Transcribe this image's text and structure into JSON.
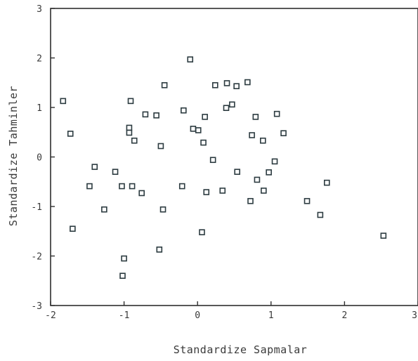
{
  "chart_data": {
    "type": "scatter",
    "title": "",
    "xlabel": "Standardize Sapmalar",
    "ylabel": "Standardize Tahminler",
    "xlim": [
      -2,
      3
    ],
    "ylim": [
      -3,
      3
    ],
    "xticks": [
      -2,
      -1,
      0,
      1,
      2,
      3
    ],
    "yticks": [
      -3,
      -2,
      -1,
      0,
      1,
      2,
      3
    ],
    "xtick_labels": [
      "-2",
      "-1",
      "0",
      "1",
      "2",
      "3"
    ],
    "ytick_labels": [
      "-3",
      "-2",
      "-1",
      "0",
      "1",
      "2",
      "3"
    ],
    "grid": false,
    "marker": "square",
    "marker_color": "#2c3b40",
    "points": [
      {
        "x": -1.83,
        "y": 1.13
      },
      {
        "x": -1.73,
        "y": 0.47
      },
      {
        "x": -1.7,
        "y": -1.45
      },
      {
        "x": -1.47,
        "y": -0.59
      },
      {
        "x": -1.4,
        "y": -0.2
      },
      {
        "x": -1.27,
        "y": -1.06
      },
      {
        "x": -1.12,
        "y": -0.3
      },
      {
        "x": -1.03,
        "y": -0.59
      },
      {
        "x": -1.0,
        "y": -2.05
      },
      {
        "x": -1.02,
        "y": -2.4
      },
      {
        "x": -0.93,
        "y": 0.59
      },
      {
        "x": -0.93,
        "y": 0.49
      },
      {
        "x": -0.91,
        "y": 1.13
      },
      {
        "x": -0.89,
        "y": -0.59
      },
      {
        "x": -0.86,
        "y": 0.33
      },
      {
        "x": -0.76,
        "y": -0.73
      },
      {
        "x": -0.71,
        "y": 0.86
      },
      {
        "x": -0.56,
        "y": 0.84
      },
      {
        "x": -0.52,
        "y": -1.87
      },
      {
        "x": -0.5,
        "y": 0.22
      },
      {
        "x": -0.47,
        "y": -1.06
      },
      {
        "x": -0.45,
        "y": 1.45
      },
      {
        "x": -0.21,
        "y": -0.59
      },
      {
        "x": -0.19,
        "y": 0.94
      },
      {
        "x": -0.1,
        "y": 1.97
      },
      {
        "x": -0.06,
        "y": 0.57
      },
      {
        "x": 0.01,
        "y": 0.54
      },
      {
        "x": 0.06,
        "y": -1.52
      },
      {
        "x": 0.08,
        "y": 0.29
      },
      {
        "x": 0.1,
        "y": 0.81
      },
      {
        "x": 0.12,
        "y": -0.71
      },
      {
        "x": 0.21,
        "y": -0.06
      },
      {
        "x": 0.24,
        "y": 1.45
      },
      {
        "x": 0.34,
        "y": -0.68
      },
      {
        "x": 0.39,
        "y": 0.99
      },
      {
        "x": 0.4,
        "y": 1.49
      },
      {
        "x": 0.47,
        "y": 1.06
      },
      {
        "x": 0.53,
        "y": 1.43
      },
      {
        "x": 0.54,
        "y": -0.3
      },
      {
        "x": 0.68,
        "y": 1.51
      },
      {
        "x": 0.72,
        "y": -0.89
      },
      {
        "x": 0.74,
        "y": 0.44
      },
      {
        "x": 0.79,
        "y": 0.81
      },
      {
        "x": 0.81,
        "y": -0.46
      },
      {
        "x": 0.89,
        "y": 0.33
      },
      {
        "x": 0.9,
        "y": -0.68
      },
      {
        "x": 0.97,
        "y": -0.31
      },
      {
        "x": 1.05,
        "y": -0.09
      },
      {
        "x": 1.08,
        "y": 0.87
      },
      {
        "x": 1.17,
        "y": 0.48
      },
      {
        "x": 1.49,
        "y": -0.89
      },
      {
        "x": 1.67,
        "y": -1.17
      },
      {
        "x": 1.76,
        "y": -0.52
      },
      {
        "x": 2.53,
        "y": -1.59
      }
    ]
  }
}
